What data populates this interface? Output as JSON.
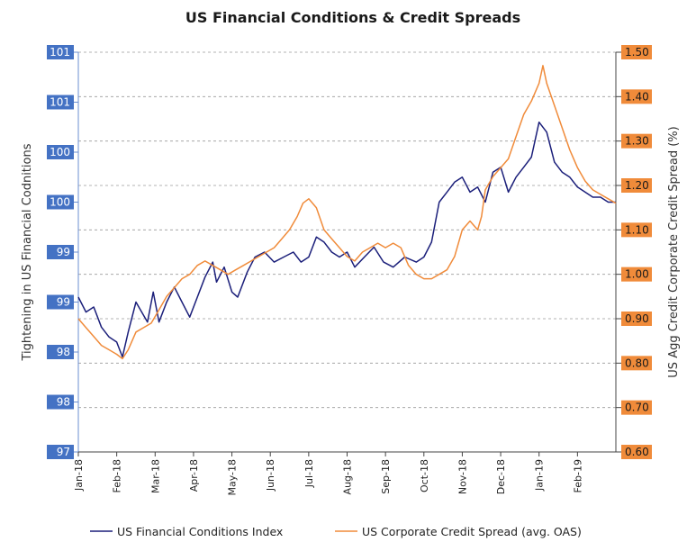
{
  "chart_data": {
    "type": "line",
    "title": "US Financial Conditions & Credit Spreads",
    "y_left_label": "Tightening in US Financial Codnitions",
    "y_right_label": "US Agg Credit Corporate Credit Spread (%)",
    "y_left_ticks": [
      "97",
      "98",
      "98",
      "99",
      "99",
      "100",
      "100",
      "101",
      "101"
    ],
    "y_left_range": [
      97,
      101
    ],
    "y_right_ticks": [
      "0.60",
      "0.70",
      "0.80",
      "0.90",
      "1.00",
      "1.10",
      "1.20",
      "1.30",
      "1.40",
      "1.50"
    ],
    "y_right_range": [
      0.6,
      1.5
    ],
    "x_ticks": [
      "Jan-18",
      "Feb-18",
      "Mar-18",
      "Apr-18",
      "May-18",
      "Jun-18",
      "Jul-18",
      "Aug-18",
      "Sep-18",
      "Oct-18",
      "Nov-18",
      "Dec-18",
      "Jan-19",
      "Feb-19"
    ],
    "x_range_months": [
      0,
      14
    ],
    "gridlines": "horizontal dashed",
    "legend_position": "bottom",
    "series": [
      {
        "name": "US Financial Conditions Index",
        "axis": "left",
        "color": "#1b1f7a",
        "points": [
          [
            0.0,
            98.55
          ],
          [
            0.2,
            98.4
          ],
          [
            0.4,
            98.45
          ],
          [
            0.6,
            98.25
          ],
          [
            0.8,
            98.15
          ],
          [
            1.0,
            98.1
          ],
          [
            1.15,
            97.95
          ],
          [
            1.3,
            98.2
          ],
          [
            1.5,
            98.5
          ],
          [
            1.65,
            98.4
          ],
          [
            1.8,
            98.3
          ],
          [
            1.95,
            98.6
          ],
          [
            2.1,
            98.3
          ],
          [
            2.3,
            98.5
          ],
          [
            2.5,
            98.65
          ],
          [
            2.7,
            98.5
          ],
          [
            2.9,
            98.35
          ],
          [
            3.1,
            98.55
          ],
          [
            3.3,
            98.75
          ],
          [
            3.5,
            98.9
          ],
          [
            3.6,
            98.7
          ],
          [
            3.8,
            98.85
          ],
          [
            4.0,
            98.6
          ],
          [
            4.15,
            98.55
          ],
          [
            4.4,
            98.8
          ],
          [
            4.6,
            98.95
          ],
          [
            4.85,
            99.0
          ],
          [
            5.1,
            98.9
          ],
          [
            5.35,
            98.95
          ],
          [
            5.6,
            99.0
          ],
          [
            5.8,
            98.9
          ],
          [
            6.0,
            98.95
          ],
          [
            6.2,
            99.15
          ],
          [
            6.4,
            99.1
          ],
          [
            6.6,
            99.0
          ],
          [
            6.8,
            98.95
          ],
          [
            7.0,
            99.0
          ],
          [
            7.2,
            98.85
          ],
          [
            7.45,
            98.95
          ],
          [
            7.7,
            99.05
          ],
          [
            7.95,
            98.9
          ],
          [
            8.2,
            98.85
          ],
          [
            8.5,
            98.95
          ],
          [
            8.8,
            98.9
          ],
          [
            9.0,
            98.95
          ],
          [
            9.2,
            99.1
          ],
          [
            9.4,
            99.5
          ],
          [
            9.6,
            99.6
          ],
          [
            9.8,
            99.7
          ],
          [
            10.0,
            99.75
          ],
          [
            10.2,
            99.6
          ],
          [
            10.4,
            99.65
          ],
          [
            10.6,
            99.5
          ],
          [
            10.8,
            99.8
          ],
          [
            11.0,
            99.85
          ],
          [
            11.2,
            99.6
          ],
          [
            11.4,
            99.75
          ],
          [
            11.6,
            99.85
          ],
          [
            11.8,
            99.95
          ],
          [
            12.0,
            100.3
          ],
          [
            12.2,
            100.2
          ],
          [
            12.4,
            99.9
          ],
          [
            12.6,
            99.8
          ],
          [
            12.8,
            99.75
          ],
          [
            13.0,
            99.65
          ],
          [
            13.2,
            99.6
          ],
          [
            13.4,
            99.55
          ],
          [
            13.6,
            99.55
          ],
          [
            13.8,
            99.5
          ],
          [
            14.0,
            99.5
          ]
        ]
      },
      {
        "name": "US Corporate Credit Spread (avg. OAS)",
        "axis": "right",
        "color": "#f08b3a",
        "points": [
          [
            0.0,
            0.9
          ],
          [
            0.2,
            0.88
          ],
          [
            0.4,
            0.86
          ],
          [
            0.6,
            0.84
          ],
          [
            0.8,
            0.83
          ],
          [
            1.0,
            0.82
          ],
          [
            1.15,
            0.81
          ],
          [
            1.3,
            0.83
          ],
          [
            1.5,
            0.87
          ],
          [
            1.7,
            0.88
          ],
          [
            1.9,
            0.89
          ],
          [
            2.1,
            0.92
          ],
          [
            2.3,
            0.95
          ],
          [
            2.5,
            0.97
          ],
          [
            2.7,
            0.99
          ],
          [
            2.9,
            1.0
          ],
          [
            3.1,
            1.02
          ],
          [
            3.3,
            1.03
          ],
          [
            3.5,
            1.02
          ],
          [
            3.7,
            1.01
          ],
          [
            3.9,
            1.0
          ],
          [
            4.1,
            1.01
          ],
          [
            4.3,
            1.02
          ],
          [
            4.5,
            1.03
          ],
          [
            4.7,
            1.04
          ],
          [
            4.9,
            1.05
          ],
          [
            5.1,
            1.06
          ],
          [
            5.3,
            1.08
          ],
          [
            5.5,
            1.1
          ],
          [
            5.7,
            1.13
          ],
          [
            5.85,
            1.16
          ],
          [
            6.0,
            1.17
          ],
          [
            6.2,
            1.15
          ],
          [
            6.4,
            1.1
          ],
          [
            6.6,
            1.08
          ],
          [
            6.8,
            1.06
          ],
          [
            7.0,
            1.04
          ],
          [
            7.2,
            1.03
          ],
          [
            7.4,
            1.05
          ],
          [
            7.6,
            1.06
          ],
          [
            7.8,
            1.07
          ],
          [
            8.0,
            1.06
          ],
          [
            8.2,
            1.07
          ],
          [
            8.4,
            1.06
          ],
          [
            8.6,
            1.02
          ],
          [
            8.8,
            1.0
          ],
          [
            9.0,
            0.99
          ],
          [
            9.2,
            0.99
          ],
          [
            9.4,
            1.0
          ],
          [
            9.6,
            1.01
          ],
          [
            9.8,
            1.04
          ],
          [
            10.0,
            1.1
          ],
          [
            10.2,
            1.12
          ],
          [
            10.4,
            1.1
          ],
          [
            10.5,
            1.13
          ],
          [
            10.6,
            1.19
          ],
          [
            10.8,
            1.22
          ],
          [
            11.0,
            1.24
          ],
          [
            11.2,
            1.26
          ],
          [
            11.4,
            1.31
          ],
          [
            11.6,
            1.36
          ],
          [
            11.8,
            1.39
          ],
          [
            12.0,
            1.43
          ],
          [
            12.1,
            1.47
          ],
          [
            12.2,
            1.43
          ],
          [
            12.4,
            1.38
          ],
          [
            12.6,
            1.33
          ],
          [
            12.8,
            1.28
          ],
          [
            13.0,
            1.24
          ],
          [
            13.2,
            1.21
          ],
          [
            13.4,
            1.19
          ],
          [
            13.6,
            1.18
          ],
          [
            13.8,
            1.17
          ],
          [
            14.0,
            1.16
          ]
        ]
      }
    ]
  }
}
